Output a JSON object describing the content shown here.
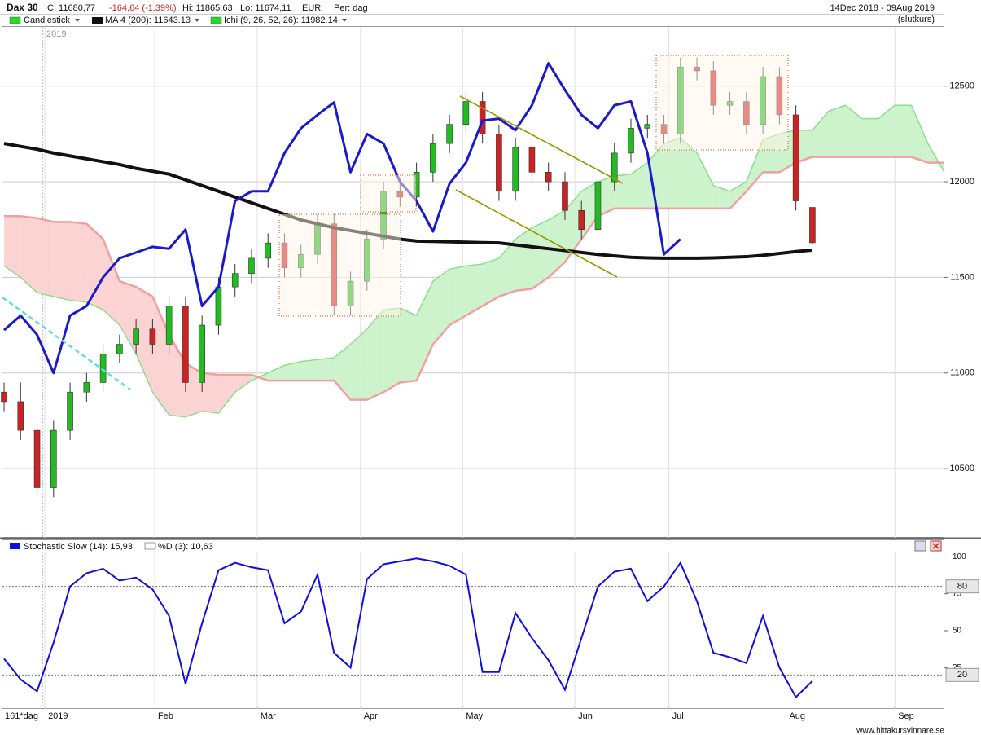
{
  "header": {
    "symbol": "Dax 30",
    "close": "C: 11680,77",
    "change": "-164,64 (-1,39%)",
    "high": "Hi: 11865,63",
    "low": "Lo: 11674,11",
    "currency": "EUR",
    "period_label": "Per: dag",
    "range": "14Dec 2018 - 09Aug 2019",
    "price_type": "(slutkurs)",
    "year_marker": "2019",
    "stoch_d": "%D (3): 10,63",
    "period": "161*dag",
    "watermark": "www.hittakursvinnare.se"
  },
  "chart_data": [
    {
      "type": "candlestick",
      "xlim": [
        -0.1,
        57
      ],
      "ylim": [
        10138,
        12810
      ],
      "yticks": [
        10500,
        11000,
        11500,
        12000,
        12500
      ],
      "xticks": [
        {
          "value": 2.47,
          "label": "2019"
        },
        {
          "value": 9.13,
          "label": "Feb"
        },
        {
          "value": 15.34,
          "label": "Mar"
        },
        {
          "value": 21.6,
          "label": "Apr"
        },
        {
          "value": 27.8,
          "label": "May"
        },
        {
          "value": 34.6,
          "label": "Jun"
        },
        {
          "value": 40.3,
          "label": "Jul"
        },
        {
          "value": 47.4,
          "label": "Aug"
        },
        {
          "value": 54.0,
          "label": "Sep"
        }
      ],
      "grid": true,
      "candles": {
        "name": "Candlestick",
        "up_color": "#22bb22",
        "down_color": "#cc2222",
        "open": [
          10900,
          10850,
          10700,
          10400,
          10700,
          10900,
          10950,
          11100,
          11150,
          11230,
          11150,
          11350,
          10950,
          11250,
          11450,
          11520,
          11600,
          11680,
          11550,
          11620,
          11780,
          11350,
          11480,
          11700,
          11950,
          11920,
          12050,
          12200,
          12300,
          12420,
          12250,
          11950,
          12180,
          12050,
          12000,
          11850,
          11750,
          12000,
          12150,
          12280,
          12300,
          12250,
          12600,
          12580,
          12400,
          12420,
          12300,
          12550,
          12350,
          11866
        ],
        "high": [
          10950,
          10950,
          10750,
          10750,
          10950,
          11000,
          11150,
          11200,
          11280,
          11280,
          11400,
          11400,
          11300,
          11500,
          11570,
          11650,
          11730,
          11730,
          11670,
          11830,
          11830,
          11530,
          11750,
          12000,
          12000,
          12100,
          12250,
          12350,
          12470,
          12470,
          12300,
          12230,
          12230,
          12100,
          12050,
          11900,
          12050,
          12200,
          12330,
          12350,
          12350,
          12650,
          12650,
          12630,
          12470,
          12470,
          12600,
          12600,
          12400,
          11866
        ],
        "low": [
          10800,
          10650,
          10350,
          10350,
          10650,
          10850,
          10900,
          11050,
          11100,
          11100,
          11100,
          10900,
          10900,
          11200,
          11400,
          11470,
          11550,
          11500,
          11500,
          11570,
          11300,
          11300,
          11430,
          11650,
          11870,
          11870,
          12000,
          12150,
          12250,
          12200,
          11900,
          11900,
          12000,
          11950,
          11800,
          11700,
          11700,
          11950,
          12100,
          12230,
          12200,
          12200,
          12530,
          12350,
          12350,
          12250,
          12250,
          12300,
          11850,
          11674
        ],
        "close": [
          10850,
          10700,
          10400,
          10700,
          10900,
          10950,
          11100,
          11150,
          11230,
          11150,
          11350,
          10950,
          11250,
          11450,
          11520,
          11600,
          11680,
          11550,
          11620,
          11780,
          11350,
          11480,
          11700,
          11950,
          11920,
          12050,
          12200,
          12300,
          12420,
          12250,
          11950,
          12180,
          12050,
          12000,
          11850,
          11750,
          12000,
          12150,
          12280,
          12300,
          12250,
          12600,
          12580,
          12400,
          12420,
          12300,
          12550,
          12350,
          11900,
          11681
        ]
      },
      "series": [
        {
          "name": "MA 4 (200): 11643.13",
          "color": "#111111",
          "values": [
            12200,
            12185,
            12170,
            12150,
            12135,
            12120,
            12105,
            12090,
            12070,
            12055,
            12040,
            12010,
            11980,
            11950,
            11920,
            11890,
            11860,
            11830,
            11800,
            11780,
            11760,
            11745,
            11730,
            11715,
            11700,
            11690,
            11688,
            11686,
            11684,
            11682,
            11680,
            11670,
            11660,
            11650,
            11640,
            11630,
            11620,
            11612,
            11605,
            11602,
            11600,
            11600,
            11600,
            11602,
            11605,
            11608,
            11615,
            11625,
            11635,
            11643
          ]
        }
      ],
      "ichimoku": {
        "name": "Ichi (9, 26, 52, 26): 11982.14",
        "color": "#33cc33",
        "cloud_up_color": "#cdf3cd",
        "cloud_down_color": "#fcd3d3",
        "span_a": {
          "color": "#8fdc8f",
          "values": [
            11560,
            11500,
            11420,
            11400,
            11380,
            11370,
            11330,
            11250,
            11100,
            10900,
            10780,
            10770,
            10800,
            10790,
            10900,
            10960,
            11000,
            11040,
            11060,
            11070,
            11080,
            11150,
            11230,
            11330,
            11340,
            11300,
            11480,
            11543,
            11560,
            11570,
            11600,
            11700,
            11760,
            11800,
            11850,
            11950,
            12000,
            12030,
            12040,
            12100,
            12200,
            12230,
            12150,
            11980,
            11950,
            12000,
            12220,
            12250,
            12270,
            12270,
            12370,
            12400,
            12330,
            12330,
            12400,
            12400,
            12200,
            12050
          ]
        },
        "span_b": {
          "color": "#f0a0a0",
          "values": [
            11820,
            11820,
            11810,
            11790,
            11790,
            11780,
            11700,
            11480,
            11450,
            11400,
            11200,
            11050,
            11000,
            10990,
            10990,
            10990,
            10960,
            10960,
            10960,
            10960,
            10960,
            10860,
            10860,
            10900,
            10950,
            10960,
            11150,
            11250,
            11300,
            11350,
            11400,
            11430,
            11440,
            11500,
            11580,
            11700,
            11820,
            11860,
            11860,
            11860,
            11860,
            11860,
            11860,
            11860,
            11860,
            11950,
            12050,
            12050,
            12100,
            12130,
            12130,
            12130,
            12130,
            12130,
            12130,
            12130,
            12100,
            12100
          ]
        },
        "lagging_span": {
          "color": "#1a1acc",
          "values": [
            11224,
            11300,
            11200,
            11000,
            11300,
            11350,
            11500,
            11600,
            11630,
            11660,
            11650,
            11750,
            11350,
            11450,
            11900,
            11950,
            11950,
            12150,
            12280,
            12350,
            12415,
            12050,
            12250,
            12200,
            12000,
            11900,
            11740,
            11990,
            12100,
            12320,
            12330,
            12270,
            12400,
            12620,
            12480,
            12350,
            12280,
            12400,
            12420,
            12150,
            11620,
            11700
          ]
        }
      }
    },
    {
      "type": "line",
      "xlim": [
        -0.1,
        57
      ],
      "ylim": [
        -3,
        103
      ],
      "yticks": [
        25,
        50,
        75,
        100
      ],
      "levels": [
        80,
        20
      ],
      "series": [
        {
          "name": "Stochastic Slow (14): 15,93",
          "color": "#1010dd",
          "values": [
            31,
            17,
            9,
            42,
            80,
            89,
            92,
            84,
            86,
            78,
            60,
            14,
            55,
            91,
            96,
            93,
            91,
            55,
            63,
            88,
            35,
            25,
            85,
            95,
            97,
            99,
            97,
            94,
            88,
            22,
            22,
            62,
            45,
            30,
            10,
            45,
            80,
            90,
            92,
            70,
            80,
            96,
            70,
            35,
            32,
            28,
            60,
            25,
            5,
            15.93
          ]
        }
      ]
    }
  ]
}
